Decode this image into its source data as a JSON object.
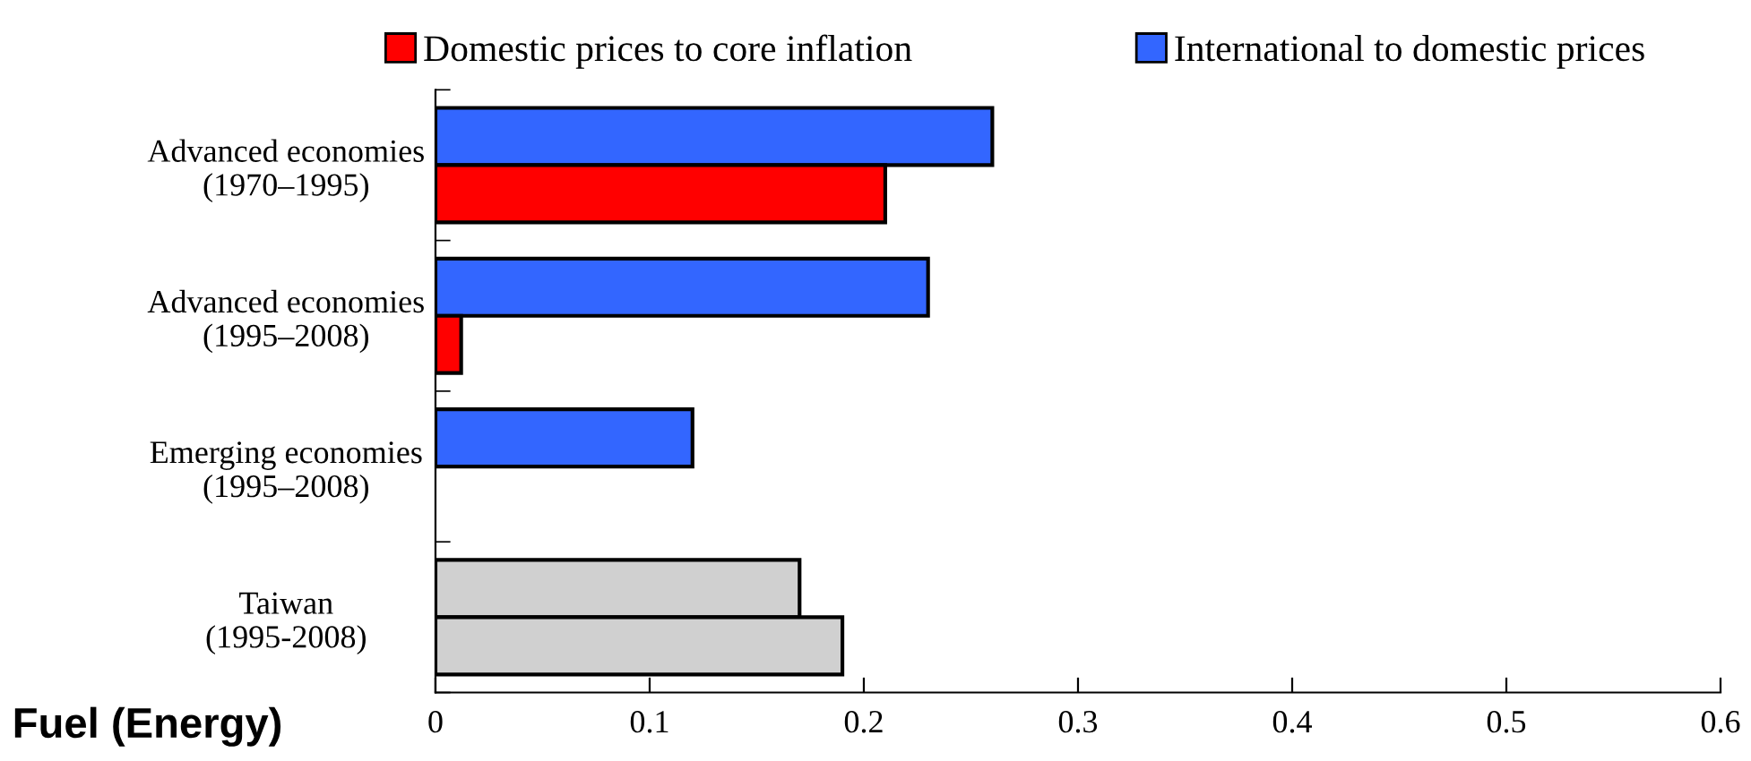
{
  "chart_data": {
    "type": "bar",
    "orientation": "horizontal",
    "categories": [
      "Advanced economies\n(1970–1995)",
      "Advanced economies\n(1995–2008)",
      "Emerging economies\n(1995–2008)",
      "Taiwan\n(1995-2008)"
    ],
    "series": [
      {
        "name": "International to domestic prices",
        "color": "#3366ff",
        "colors": [
          "#3366ff",
          "#3366ff",
          "#3366ff",
          "#d0d0d0"
        ],
        "values": [
          0.26,
          0.23,
          0.12,
          0.17
        ]
      },
      {
        "name": "Domestic prices to core inflation",
        "color": "#ff0000",
        "colors": [
          "#ff0000",
          "#ff0000",
          "#ff0000",
          "#d0d0d0"
        ],
        "values": [
          0.21,
          0.012,
          null,
          0.19
        ]
      }
    ],
    "xlim": [
      0,
      0.6
    ],
    "xticks": [
      0,
      0.1,
      0.2,
      0.3,
      0.4,
      0.5,
      0.6
    ],
    "grid": false,
    "legend": "top",
    "annotations": [
      "Fuel (Energy)"
    ]
  }
}
